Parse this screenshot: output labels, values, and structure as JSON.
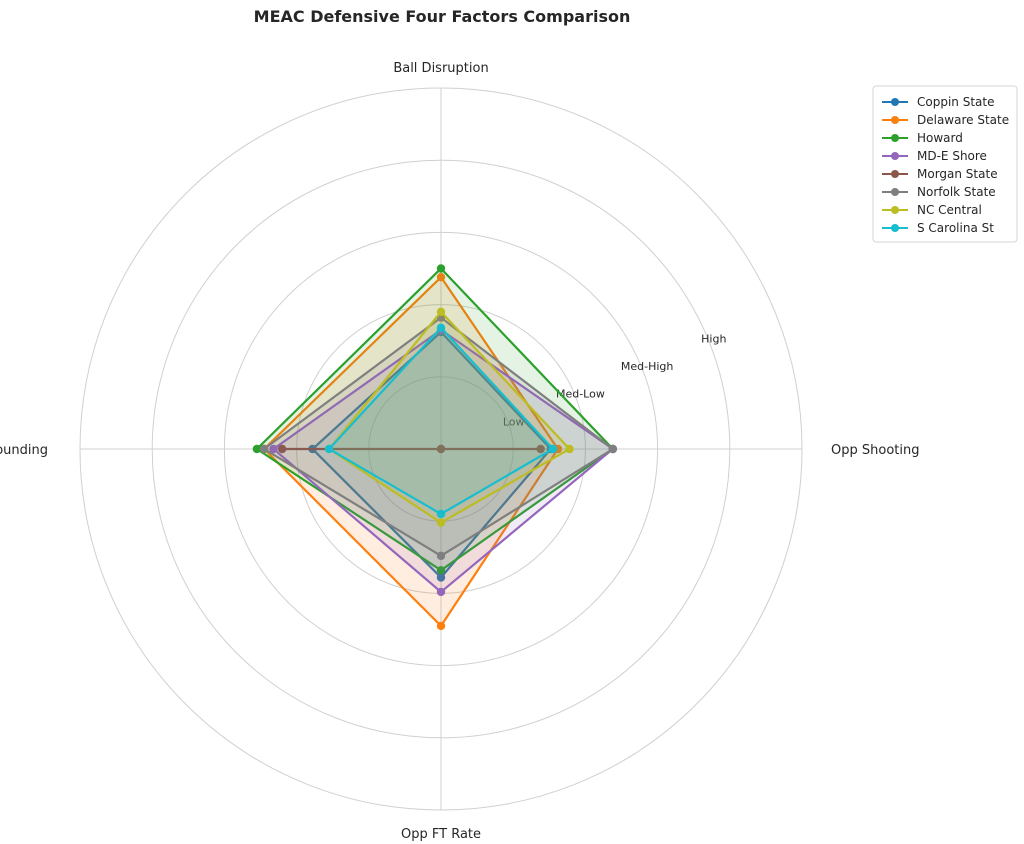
{
  "chart_data": {
    "type": "radar",
    "title": "MEAC Defensive Four Factors Comparison",
    "axes": [
      "Ball Disruption",
      "Opp Shooting",
      "Opp FT Rate",
      "Def Rebounding"
    ],
    "radial_range": [
      0,
      5
    ],
    "ring_labels": [
      {
        "value": 1,
        "label": "Low"
      },
      {
        "value": 2,
        "label": "Med-Low"
      },
      {
        "value": 3,
        "label": "Med-High"
      },
      {
        "value": 4,
        "label": "High"
      }
    ],
    "grid": true,
    "legend_position": "top-right",
    "series": [
      {
        "name": "Coppin State",
        "color": "#1f77b4",
        "values": [
          1.62,
          1.52,
          1.78,
          1.78
        ]
      },
      {
        "name": "Delaware State",
        "color": "#ff7f0e",
        "values": [
          2.38,
          1.62,
          2.45,
          2.45
        ]
      },
      {
        "name": "Howard",
        "color": "#2ca02c",
        "values": [
          2.5,
          2.38,
          1.68,
          2.55
        ]
      },
      {
        "name": "MD-E Shore",
        "color": "#9467bd",
        "values": [
          1.65,
          2.38,
          1.98,
          2.32
        ]
      },
      {
        "name": "Morgan State",
        "color": "#8c564b",
        "values": [
          0.0,
          1.38,
          0.0,
          2.2
        ]
      },
      {
        "name": "Norfolk State",
        "color": "#7f7f7f",
        "values": [
          1.82,
          2.38,
          1.48,
          2.45
        ]
      },
      {
        "name": "NC Central",
        "color": "#bcbd22",
        "values": [
          1.9,
          1.78,
          1.02,
          1.55
        ]
      },
      {
        "name": "S Carolina St",
        "color": "#17becf",
        "values": [
          1.68,
          1.55,
          0.9,
          1.55
        ]
      }
    ]
  }
}
